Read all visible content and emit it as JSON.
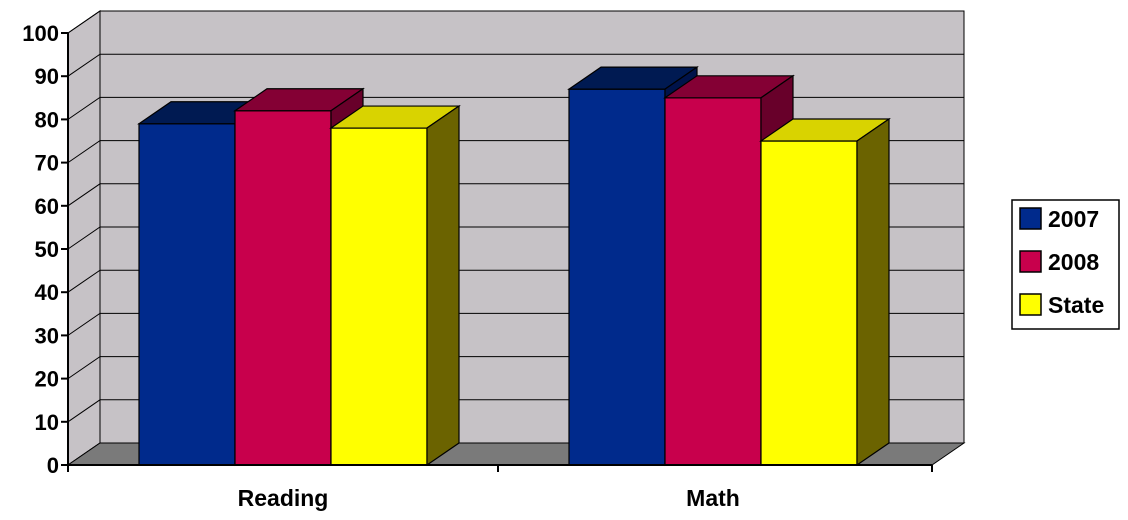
{
  "chart_data": {
    "type": "bar",
    "categories": [
      "Reading",
      "Math"
    ],
    "series": [
      {
        "name": "2007",
        "values": [
          79,
          87
        ],
        "color": "#002a8c",
        "top_color": "#001a52",
        "side_color": "#00134a"
      },
      {
        "name": "2008",
        "values": [
          82,
          85
        ],
        "color": "#c8004c",
        "top_color": "#840034",
        "side_color": "#68002a"
      },
      {
        "name": "State",
        "values": [
          78,
          75
        ],
        "color": "#ffff00",
        "top_color": "#d9d300",
        "side_color": "#6b6300"
      }
    ],
    "yticks": [
      "0",
      "10",
      "20",
      "30",
      "40",
      "50",
      "60",
      "70",
      "80",
      "90",
      "100"
    ],
    "ylim": [
      0,
      100
    ],
    "grid": true,
    "legend_position": "right",
    "style": "3d-clustered-column",
    "wall_color": "#c6c2c6",
    "floor_color": "#7a7a7a"
  }
}
